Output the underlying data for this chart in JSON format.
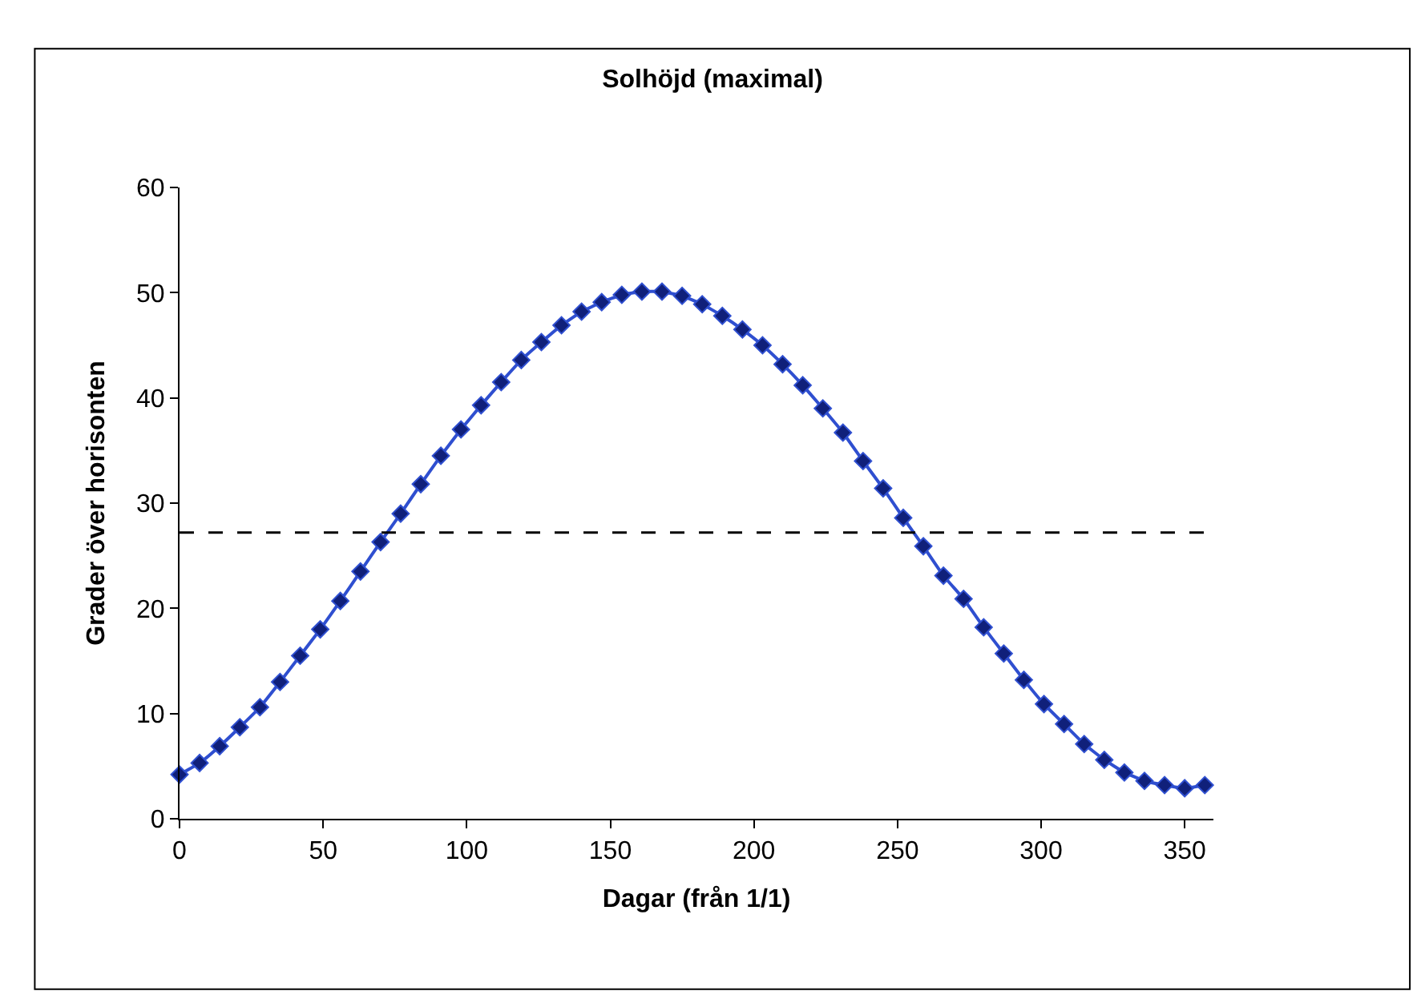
{
  "chart_data": {
    "type": "line",
    "title": "Solhöjd (maximal)",
    "xlabel": "Dagar (från 1/1)",
    "ylabel": "Grader över horisonten",
    "x": [
      0,
      7,
      14,
      21,
      28,
      35,
      42,
      49,
      56,
      63,
      70,
      77,
      84,
      91,
      98,
      105,
      112,
      119,
      126,
      133,
      140,
      147,
      154,
      161,
      168,
      175,
      182,
      189,
      196,
      203,
      210,
      217,
      224,
      231,
      238,
      245,
      252,
      259,
      266,
      273,
      280,
      287,
      294,
      301,
      308,
      315,
      322,
      329,
      336,
      343,
      350,
      357
    ],
    "series": [
      {
        "color": "#2f4fd0",
        "values": [
          4.2,
          5.3,
          6.9,
          8.7,
          10.6,
          13.0,
          15.5,
          18.0,
          20.7,
          23.5,
          26.3,
          29.0,
          31.8,
          34.5,
          37.0,
          39.3,
          41.5,
          43.6,
          45.3,
          46.9,
          48.2,
          49.1,
          49.8,
          50.1,
          50.1,
          49.7,
          48.9,
          47.8,
          46.5,
          45.0,
          43.2,
          41.2,
          39.0,
          36.7,
          34.0,
          31.4,
          28.6,
          25.9,
          23.1,
          20.9,
          18.2,
          15.7,
          13.2,
          10.9,
          9.0,
          7.1,
          5.6,
          4.4,
          3.6,
          3.2,
          2.9,
          3.2
        ]
      }
    ],
    "xlim": [
      0,
      360
    ],
    "xticks": [
      0,
      50,
      100,
      150,
      200,
      250,
      300,
      350
    ],
    "ylim": [
      0,
      60
    ],
    "yticks": [
      0,
      10,
      20,
      30,
      40,
      50,
      60
    ],
    "ref_lines": [
      {
        "axis": "y",
        "value": 27.2,
        "color": "#000000",
        "line_style": "dashed"
      }
    ],
    "marker": "diamond",
    "line_style": "solid",
    "grid": false,
    "legend": false
  }
}
